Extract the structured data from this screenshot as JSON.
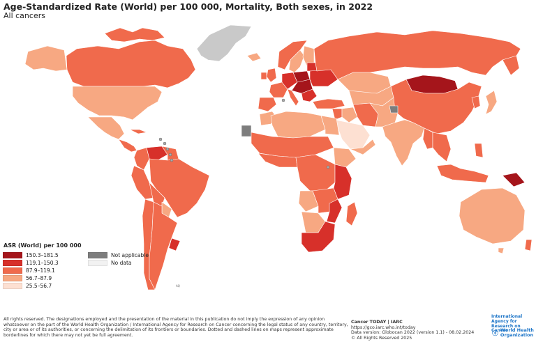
{
  "header": {
    "title": "Age-Standardized Rate (World) per 100 000, Mortality, Both sexes, in 2022",
    "subtitle": "All cancers"
  },
  "legend": {
    "title": "ASR (World) per 100 000",
    "classes": [
      {
        "label": "150.3–181.5",
        "color": "#a5151b"
      },
      {
        "label": "119.1–150.3",
        "color": "#d7302a"
      },
      {
        "label": "87.9–119.1",
        "color": "#f06a4c"
      },
      {
        "label": "56.7–87.9",
        "color": "#f7a882"
      },
      {
        "label": "25.5–56.7",
        "color": "#fde0d2"
      }
    ],
    "special": [
      {
        "label": "Not applicable",
        "color": "#7d7d7d"
      },
      {
        "label": "No data",
        "color": "#f2f2f2"
      }
    ]
  },
  "colors": {
    "ocean": "#ffffff",
    "border": "#ffffff",
    "greenland": "#c9c9c9"
  },
  "footer": {
    "disclaimer": "All rights reserved. The designations employed and the presentation of the material in this publication do not imply the expression of any opinion whatsoever on the part of the World Health Organization / International Agency for Research on Cancer concerning the legal status of any country, territory, city or area or of its authorities, or concerning the delimitation of its frontiers or boundaries. Dotted and dashed lines on maps represent approximate borderlines for which there may not yet be full agreement.",
    "source_title": "Cancer TODAY | IARC",
    "source_url": "https://gco.iarc.who.int/today",
    "data_version": "Data version: Globocan 2022 (version 1.1) - 08.02.2024",
    "copyright": "© All Rights Reserved 2025"
  },
  "logos": {
    "iarc": "International Agency for Research on Cancer",
    "who": "World Health Organization",
    "who_icon": "who-emblem-icon"
  },
  "map_labels": {
    "antarctica_note": "AQ"
  }
}
